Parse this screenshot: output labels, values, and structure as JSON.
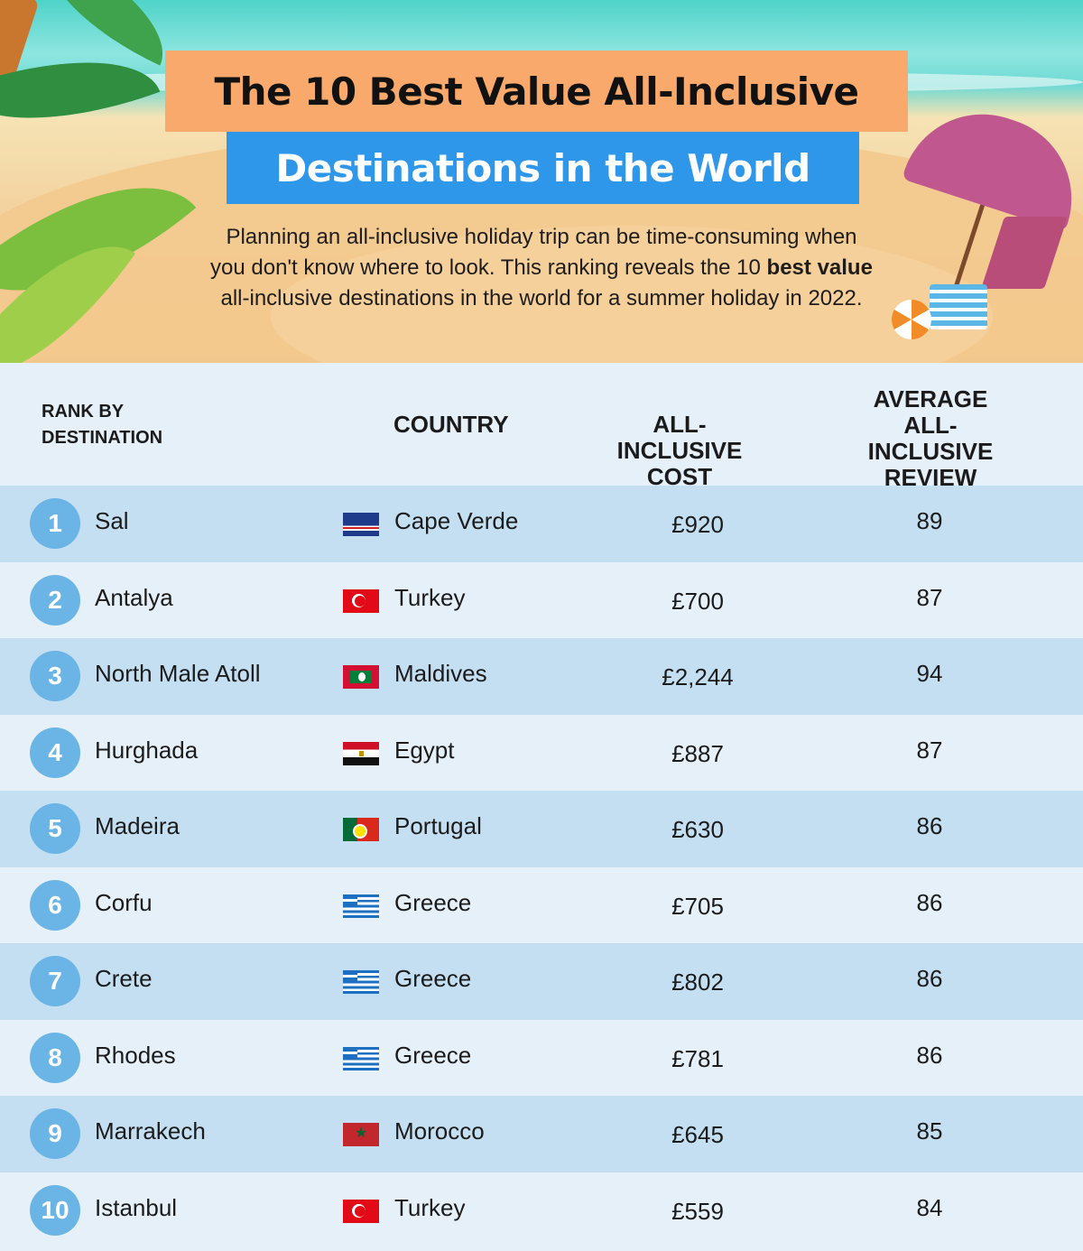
{
  "header": {
    "title_line1": "The 10 Best Value All-Inclusive",
    "title_line2": "Destinations in the World",
    "intro_part1": "Planning an all-inclusive holiday trip can be time-consuming when you don't know where to look. This ranking reveals the 10 ",
    "intro_bold": "best value",
    "intro_part2": " all-inclusive destinations in the world for a summer holiday in 2022."
  },
  "table": {
    "columns": {
      "rank_line1": "RANK BY",
      "rank_line2": "DESTINATION",
      "country": "COUNTRY",
      "cost": "ALL-INCLUSIVE COST",
      "review_line1": "AVERAGE",
      "review_line2": "ALL-INCLUSIVE",
      "review_line3": "REVIEW"
    },
    "rows": [
      {
        "rank": "1",
        "destination": "Sal",
        "country": "Cape Verde",
        "flag": "cv",
        "cost": "£920",
        "review": "89"
      },
      {
        "rank": "2",
        "destination": "Antalya",
        "country": "Turkey",
        "flag": "tr",
        "cost": "£700",
        "review": "87"
      },
      {
        "rank": "3",
        "destination": "North Male Atoll",
        "country": "Maldives",
        "flag": "mv",
        "cost": "£2,244",
        "review": "94"
      },
      {
        "rank": "4",
        "destination": "Hurghada",
        "country": "Egypt",
        "flag": "eg",
        "cost": "£887",
        "review": "87"
      },
      {
        "rank": "5",
        "destination": "Madeira",
        "country": "Portugal",
        "flag": "pt",
        "cost": "£630",
        "review": "86"
      },
      {
        "rank": "6",
        "destination": "Corfu",
        "country": "Greece",
        "flag": "gr",
        "cost": "£705",
        "review": "86"
      },
      {
        "rank": "7",
        "destination": "Crete",
        "country": "Greece",
        "flag": "gr",
        "cost": "£802",
        "review": "86"
      },
      {
        "rank": "8",
        "destination": "Rhodes",
        "country": "Greece",
        "flag": "gr",
        "cost": "£781",
        "review": "86"
      },
      {
        "rank": "9",
        "destination": "Marrakech",
        "country": "Morocco",
        "flag": "ma",
        "cost": "£645",
        "review": "85"
      },
      {
        "rank": "10",
        "destination": "Istanbul",
        "country": "Turkey",
        "flag": "tr",
        "cost": "£559",
        "review": "84"
      }
    ]
  },
  "colors": {
    "title1_bg": "#f8a96b",
    "title2_bg": "#2f97ea",
    "rank_circle": "#6bb5e6",
    "row_stripe": "#c4dff2",
    "row_plain": "#e6f0f9"
  },
  "icons": [
    "palm-leaves-illustration",
    "beach-umbrella-illustration",
    "beach-chair-illustration",
    "beach-bag-illustration",
    "beach-ball-illustration"
  ]
}
